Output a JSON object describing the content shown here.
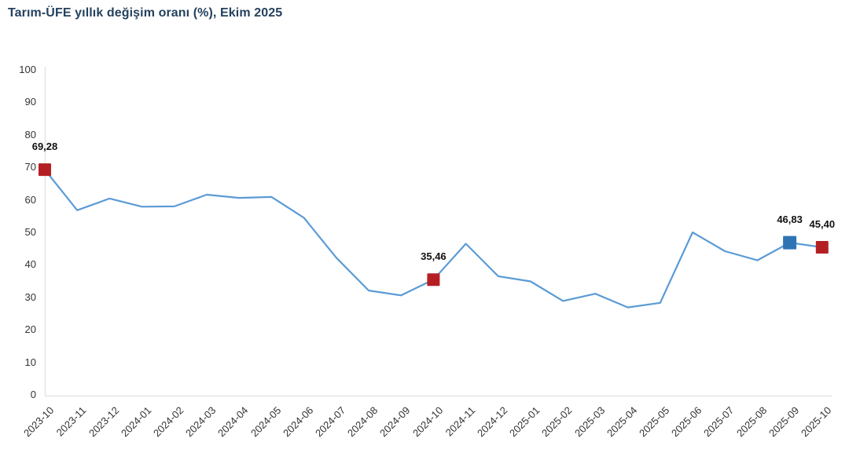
{
  "header": {
    "title": "Tarım-ÜFE yıllık değişim oranı (%), Ekim 2025"
  },
  "colors": {
    "title_text": "#24425e",
    "axis_line": "#e6e6e6",
    "tick_text": "#333333",
    "line": "#5b9bd5",
    "marker_red": "#b41f24",
    "marker_blue": "#2e74b5",
    "data_label_text": "#111111",
    "background": "#ffffff"
  },
  "chart_data": {
    "type": "line",
    "title": "Tarım-ÜFE yıllık değişim oranı (%), Ekim 2025",
    "xlabel": "",
    "ylabel": "",
    "ylim": [
      0,
      100
    ],
    "ytick_step": 10,
    "grid": false,
    "legend": false,
    "line_color": "#5b9bd5",
    "x": [
      "2023-10",
      "2023-11",
      "2023-12",
      "2024-01",
      "2024-02",
      "2024-03",
      "2024-04",
      "2024-05",
      "2024-06",
      "2024-07",
      "2024-08",
      "2024-09",
      "2024-10",
      "2024-11",
      "2024-12",
      "2025-01",
      "2025-02",
      "2025-03",
      "2025-04",
      "2025-05",
      "2025-06",
      "2025-07",
      "2025-08",
      "2025-09",
      "2025-10"
    ],
    "values": [
      69.28,
      56.8,
      60.4,
      57.9,
      58.0,
      61.6,
      60.6,
      60.9,
      54.5,
      42.2,
      32.1,
      30.6,
      35.46,
      46.5,
      36.5,
      34.9,
      28.9,
      31.1,
      26.9,
      28.3,
      50.0,
      44.2,
      41.4,
      46.83,
      45.4
    ],
    "annotated_points": [
      {
        "index": 0,
        "x": "2023-10",
        "value": 69.28,
        "label": "69,28",
        "marker": "square",
        "marker_color": "#b41f24"
      },
      {
        "index": 12,
        "x": "2024-10",
        "value": 35.46,
        "label": "35,46",
        "marker": "square",
        "marker_color": "#b41f24"
      },
      {
        "index": 23,
        "x": "2025-09",
        "value": 46.83,
        "label": "46,83",
        "marker": "square",
        "marker_color": "#2e74b5"
      },
      {
        "index": 24,
        "x": "2025-10",
        "value": 45.4,
        "label": "45,40",
        "marker": "square",
        "marker_color": "#b41f24"
      }
    ]
  }
}
